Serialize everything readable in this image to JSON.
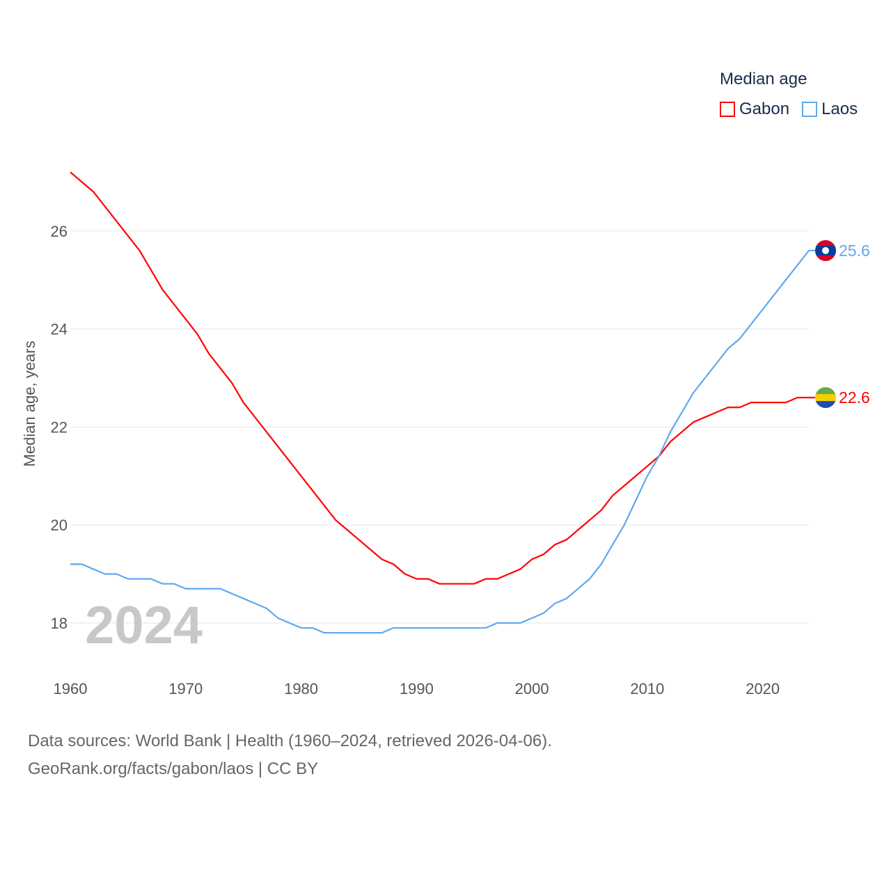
{
  "chart_data": {
    "type": "line",
    "title": "",
    "xlabel": "",
    "ylabel": "Median age, years",
    "xlim": [
      1960,
      2024
    ],
    "ylim": [
      17.1,
      27.4
    ],
    "yticks": [
      18,
      20,
      22,
      24,
      26
    ],
    "xticks": [
      1960,
      1970,
      1980,
      1990,
      2000,
      2010,
      2020
    ],
    "grid": true,
    "legend_title": "Median age",
    "legend_placement": "top-right",
    "year_label": "2024",
    "x": [
      1960,
      1961,
      1962,
      1963,
      1964,
      1965,
      1966,
      1967,
      1968,
      1969,
      1970,
      1971,
      1972,
      1973,
      1974,
      1975,
      1976,
      1977,
      1978,
      1979,
      1980,
      1981,
      1982,
      1983,
      1984,
      1985,
      1986,
      1987,
      1988,
      1989,
      1990,
      1991,
      1992,
      1993,
      1994,
      1995,
      1996,
      1997,
      1998,
      1999,
      2000,
      2001,
      2002,
      2003,
      2004,
      2005,
      2006,
      2007,
      2008,
      2009,
      2010,
      2011,
      2012,
      2013,
      2014,
      2015,
      2016,
      2017,
      2018,
      2019,
      2020,
      2021,
      2022,
      2023,
      2024
    ],
    "series": [
      {
        "name": "Gabon",
        "color": "#ff0000",
        "end_label": "22.6",
        "values": [
          27.2,
          27.0,
          26.8,
          26.5,
          26.2,
          25.9,
          25.6,
          25.2,
          24.8,
          24.5,
          24.2,
          23.9,
          23.5,
          23.2,
          22.9,
          22.5,
          22.2,
          21.9,
          21.6,
          21.3,
          21.0,
          20.7,
          20.4,
          20.1,
          19.9,
          19.7,
          19.5,
          19.3,
          19.2,
          19.0,
          18.9,
          18.9,
          18.8,
          18.8,
          18.8,
          18.8,
          18.9,
          18.9,
          19.0,
          19.1,
          19.3,
          19.4,
          19.6,
          19.7,
          19.9,
          20.1,
          20.3,
          20.6,
          20.8,
          21.0,
          21.2,
          21.4,
          21.7,
          21.9,
          22.1,
          22.2,
          22.3,
          22.4,
          22.4,
          22.5,
          22.5,
          22.5,
          22.5,
          22.6,
          22.6
        ]
      },
      {
        "name": "Laos",
        "color": "#5ea8f0",
        "end_label": "25.6",
        "values": [
          19.2,
          19.2,
          19.1,
          19.0,
          19.0,
          18.9,
          18.9,
          18.9,
          18.8,
          18.8,
          18.7,
          18.7,
          18.7,
          18.7,
          18.6,
          18.5,
          18.4,
          18.3,
          18.1,
          18.0,
          17.9,
          17.9,
          17.8,
          17.8,
          17.8,
          17.8,
          17.8,
          17.8,
          17.9,
          17.9,
          17.9,
          17.9,
          17.9,
          17.9,
          17.9,
          17.9,
          17.9,
          18.0,
          18.0,
          18.0,
          18.1,
          18.2,
          18.4,
          18.5,
          18.7,
          18.9,
          19.2,
          19.6,
          20.0,
          20.5,
          21.0,
          21.4,
          21.9,
          22.3,
          22.7,
          23.0,
          23.3,
          23.6,
          23.8,
          24.1,
          24.4,
          24.7,
          25.0,
          25.3,
          25.6
        ]
      }
    ]
  },
  "footer": {
    "line1": "Data sources: World Bank | Health (1960–2024, retrieved 2026-04-06).",
    "line2": "GeoRank.org/facts/gabon/laos | CC BY"
  }
}
